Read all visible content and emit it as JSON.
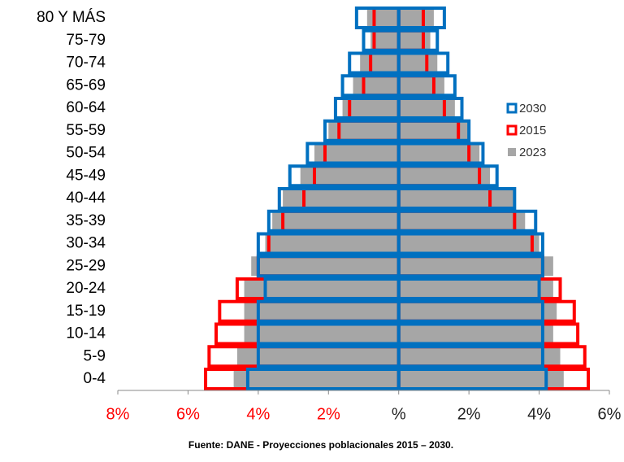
{
  "chart_data": {
    "type": "pyramid",
    "categories": [
      "80 Y MÁS",
      "75-79",
      "70-74",
      "65-69",
      "60-64",
      "55-59",
      "50-54",
      "45-49",
      "40-44",
      "35-39",
      "30-34",
      "25-29",
      "20-24",
      "15-19",
      "10-14",
      "5-9",
      "0-4"
    ],
    "series": [
      {
        "name": "2023",
        "color": "#a6a6a6",
        "style": "fill",
        "left_values": [
          -0.9,
          -0.8,
          -1.1,
          -1.3,
          -1.6,
          -2.0,
          -2.4,
          -2.8,
          -3.3,
          -3.6,
          -3.8,
          -4.2,
          -4.4,
          -4.4,
          -4.4,
          -4.6,
          -4.7
        ],
        "right_values": [
          1.0,
          0.9,
          1.1,
          1.3,
          1.6,
          2.0,
          2.3,
          2.6,
          3.3,
          3.6,
          4.0,
          4.4,
          4.4,
          4.5,
          4.4,
          4.6,
          4.7
        ]
      },
      {
        "name": "2015",
        "color": "#ff0000",
        "style": "outline",
        "left_values": [
          -0.7,
          -0.7,
          -0.8,
          -1.0,
          -1.4,
          -1.7,
          -2.1,
          -2.4,
          -2.7,
          -3.3,
          -3.7,
          -4.0,
          -4.6,
          -5.1,
          -5.2,
          -5.4,
          -5.5
        ],
        "right_values": [
          0.7,
          0.7,
          0.8,
          1.0,
          1.3,
          1.7,
          2.0,
          2.3,
          2.6,
          3.3,
          3.8,
          4.1,
          4.6,
          5.0,
          5.1,
          5.3,
          5.4
        ]
      },
      {
        "name": "2030",
        "color": "#0070c0",
        "style": "outline",
        "left_values": [
          -1.2,
          -1.0,
          -1.4,
          -1.6,
          -1.8,
          -2.1,
          -2.6,
          -3.1,
          -3.4,
          -3.7,
          -4.0,
          -4.0,
          -3.8,
          -4.0,
          -4.0,
          -4.0,
          -4.3
        ],
        "right_values": [
          1.3,
          1.1,
          1.4,
          1.6,
          1.8,
          2.0,
          2.4,
          2.8,
          3.3,
          3.9,
          4.1,
          4.1,
          4.0,
          4.1,
          4.1,
          4.1,
          4.2
        ]
      }
    ],
    "legend_order": [
      2,
      1,
      0
    ],
    "xlim": [
      -8,
      6
    ],
    "xticks": [
      {
        "value": -8,
        "label": "8%"
      },
      {
        "value": -6,
        "label": "6%"
      },
      {
        "value": -4,
        "label": "4%"
      },
      {
        "value": -2,
        "label": "2%"
      },
      {
        "value": 0,
        "label": "%"
      },
      {
        "value": 2,
        "label": "2%"
      },
      {
        "value": 4,
        "label": "4%"
      },
      {
        "value": 6,
        "label": "6%"
      }
    ],
    "negative_tick_color": "#ff0000",
    "source": "Fuente: DANE - Proyecciones poblacionales 2015 – 2030."
  }
}
